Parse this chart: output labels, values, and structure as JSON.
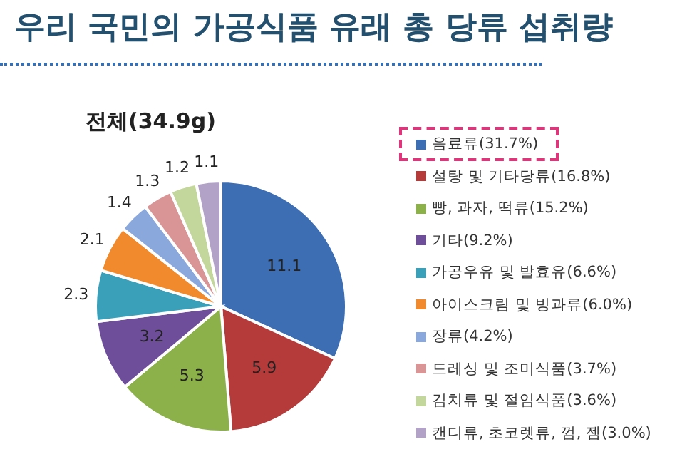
{
  "chart_data": {
    "type": "pie",
    "title": "우리 국민의 가공식품 유래 총 당류 섭취량",
    "subtitle": "전체(34.9g)",
    "categories": [
      "음료류(31.7%)",
      "설탕 및 기타당류(16.8%)",
      "빵, 과자, 떡류(15.2%)",
      "기타(9.2%)",
      "가공우유 및 발효유(6.6%)",
      "아이스크림 및 빙과류(6.0%)",
      "장류(4.2%)",
      "드레싱 및 조미식품(3.7%)",
      "김치류 및 절임식품(3.6%)",
      "캔디류, 초코렛류, 껌, 젬(3.0%)"
    ],
    "values": [
      11.1,
      5.9,
      5.3,
      3.2,
      2.3,
      2.1,
      1.4,
      1.3,
      1.2,
      1.1
    ],
    "colors": [
      "#3d6eb4",
      "#b53a3a",
      "#8cb14a",
      "#6e4d9b",
      "#3aa0b9",
      "#f08a2c",
      "#8ba8dc",
      "#d99595",
      "#c3d69b",
      "#b2a2c7"
    ],
    "data_labels": true,
    "legend": "right"
  }
}
